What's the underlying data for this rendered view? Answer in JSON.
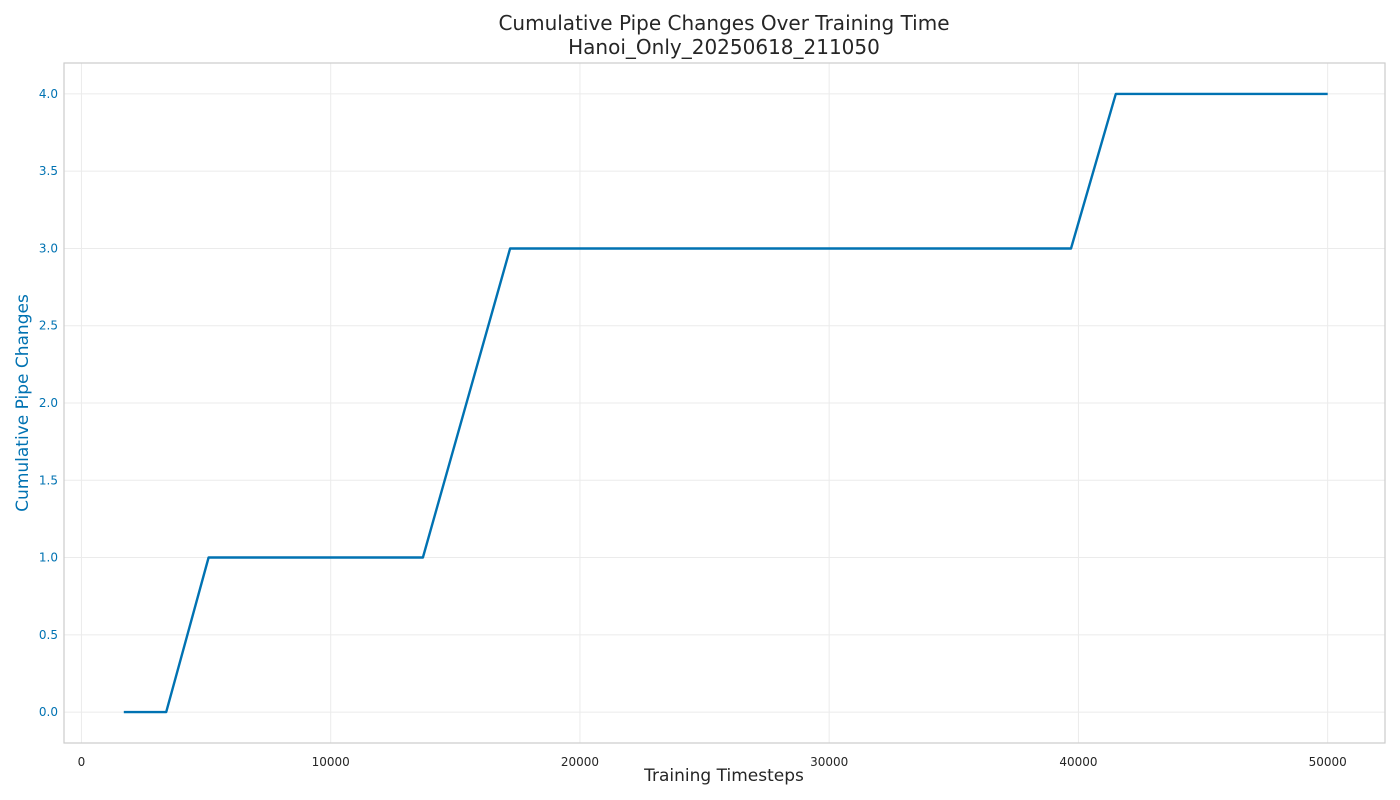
{
  "chart_data": {
    "type": "line",
    "title": "Cumulative Pipe Changes Over Training Time",
    "subtitle": "Hanoi_Only_20250618_211050",
    "xlabel": "Training Timesteps",
    "ylabel": "Cumulative Pipe Changes",
    "xlim": [
      -700,
      52300
    ],
    "ylim": [
      -0.2,
      4.2
    ],
    "x_ticks": [
      0,
      10000,
      20000,
      30000,
      40000,
      50000
    ],
    "x_tick_labels": [
      "0",
      "10000",
      "20000",
      "30000",
      "40000",
      "50000"
    ],
    "y_ticks": [
      0.0,
      0.5,
      1.0,
      1.5,
      2.0,
      2.5,
      3.0,
      3.5,
      4.0
    ],
    "y_tick_labels": [
      "0.0",
      "0.5",
      "1.0",
      "1.5",
      "2.0",
      "2.5",
      "3.0",
      "3.5",
      "4.0"
    ],
    "grid": true,
    "series": [
      {
        "color": "#0072b2",
        "x": [
          1700,
          3400,
          5100,
          13700,
          17200,
          39700,
          41500,
          50000
        ],
        "y": [
          0,
          0,
          1,
          1,
          3,
          3,
          4,
          4
        ]
      }
    ],
    "colors": {
      "accent": "#0072b2",
      "text": "#262626",
      "grid": "#ebebeb",
      "frame": "#cccccc"
    }
  }
}
